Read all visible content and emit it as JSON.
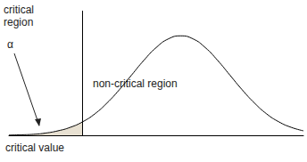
{
  "chart_data": {
    "type": "line",
    "x": [
      -3.5,
      -3.25,
      -3,
      -2.75,
      -2.5,
      -2.25,
      -2,
      -1.75,
      -1.5,
      -1.25,
      -1,
      -0.75,
      -0.5,
      -0.25,
      0,
      0.25,
      0.5,
      0.75,
      1,
      1.25,
      1.5,
      1.75,
      2,
      2.25,
      2.5
    ],
    "values": [
      0.001,
      0.002,
      0.004,
      0.009,
      0.018,
      0.032,
      0.054,
      0.086,
      0.13,
      0.183,
      0.242,
      0.301,
      0.352,
      0.387,
      0.399,
      0.387,
      0.352,
      0.301,
      0.242,
      0.183,
      0.13,
      0.086,
      0.054,
      0.032,
      0.018
    ],
    "xlim": [
      -3.5,
      2.5
    ],
    "ylim": [
      0,
      0.5
    ],
    "critical_value": -2,
    "color": "#000000",
    "grid": false,
    "tick_labels": false,
    "annotations": [
      "critical\nregion",
      "α",
      "non-critical region",
      "critical value"
    ]
  }
}
